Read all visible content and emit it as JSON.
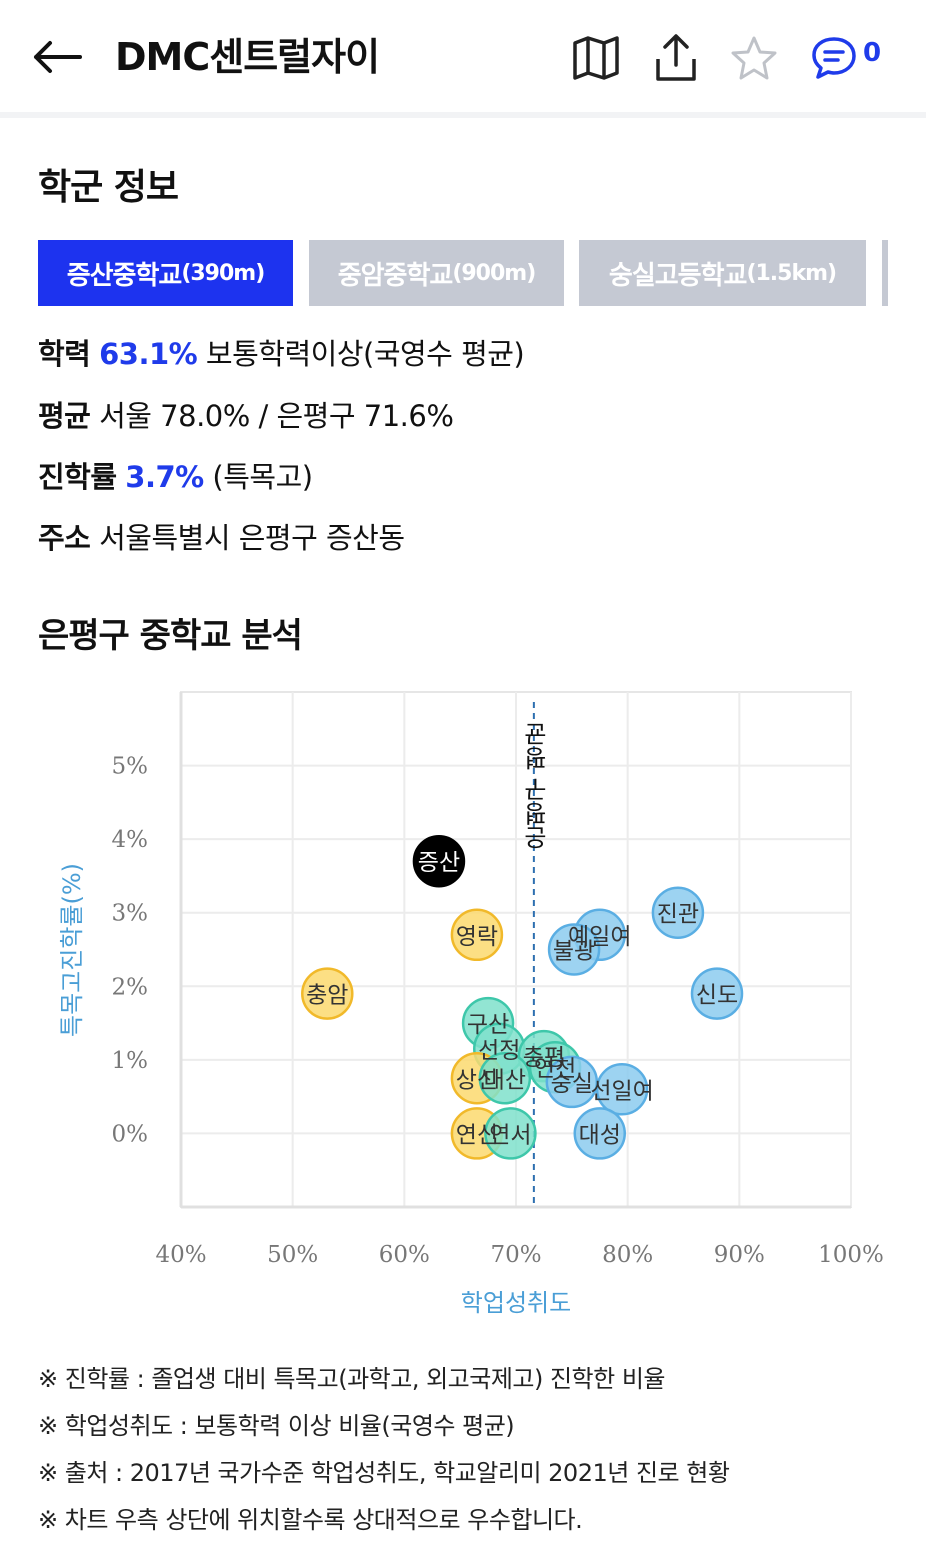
{
  "header": {
    "title": "DMC센트럴자이",
    "comment_count": "0"
  },
  "school_info": {
    "section_title": "학군 정보",
    "tabs": [
      {
        "name": "증산중학교",
        "distance": "(390m)",
        "active": true
      },
      {
        "name": "중암중학교",
        "distance": "(900m)",
        "active": false
      },
      {
        "name": "숭실고등학교",
        "distance": "(1.5km)",
        "active": false
      }
    ],
    "achievement_label": "학력",
    "achievement_value": "63.1%",
    "achievement_desc": "보통학력이상(국영수 평균)",
    "average_label": "평균",
    "average_value": "서울 78.0% / 은평구 71.6%",
    "advance_label": "진학률",
    "advance_value": "3.7%",
    "advance_desc": "(특목고)",
    "address_label": "주소",
    "address_value": "서울특별시 은평구 증산동"
  },
  "analysis": {
    "section_title": "은평구 중학교 분석"
  },
  "chart_data": {
    "type": "scatter",
    "xlabel": "학업성취도",
    "ylabel": "특목고진학률(%)",
    "xlim": [
      40,
      100
    ],
    "ylim": [
      -1,
      6
    ],
    "x_ticks": [
      "40%",
      "50%",
      "60%",
      "70%",
      "80%",
      "90%",
      "100%"
    ],
    "y_ticks": [
      "0%",
      "1%",
      "2%",
      "3%",
      "4%",
      "5%"
    ],
    "average_line": {
      "x": 71.6,
      "label": "은평구 평균"
    },
    "colors": {
      "blue": "#8ccbef",
      "teal": "#7fe0cb",
      "yellow": "#fcd96f",
      "black": "#000000"
    },
    "points": [
      {
        "label": "증산",
        "x": 63.1,
        "y": 3.7,
        "color": "black"
      },
      {
        "label": "영락",
        "x": 66.5,
        "y": 2.7,
        "color": "yellow"
      },
      {
        "label": "충암",
        "x": 53.1,
        "y": 1.9,
        "color": "yellow"
      },
      {
        "label": "진관",
        "x": 84.5,
        "y": 3.0,
        "color": "blue"
      },
      {
        "label": "예일여",
        "x": 77.5,
        "y": 2.7,
        "color": "blue"
      },
      {
        "label": "불광",
        "x": 75.2,
        "y": 2.5,
        "color": "blue"
      },
      {
        "label": "신도",
        "x": 88.0,
        "y": 1.9,
        "color": "blue"
      },
      {
        "label": "구산",
        "x": 67.5,
        "y": 1.5,
        "color": "teal"
      },
      {
        "label": "선정",
        "x": 68.5,
        "y": 1.15,
        "color": "teal"
      },
      {
        "label": "충평",
        "x": 72.5,
        "y": 1.05,
        "color": "teal"
      },
      {
        "label": "연천",
        "x": 73.5,
        "y": 0.9,
        "color": "teal"
      },
      {
        "label": "숭실",
        "x": 75.0,
        "y": 0.7,
        "color": "blue"
      },
      {
        "label": "선일여",
        "x": 79.5,
        "y": 0.6,
        "color": "blue"
      },
      {
        "label": "상신",
        "x": 66.5,
        "y": 0.75,
        "color": "yellow"
      },
      {
        "label": "대산",
        "x": 69.0,
        "y": 0.75,
        "color": "teal"
      },
      {
        "label": "연신",
        "x": 66.5,
        "y": 0.0,
        "color": "yellow"
      },
      {
        "label": "연서",
        "x": 69.5,
        "y": 0.0,
        "color": "teal"
      },
      {
        "label": "대성",
        "x": 77.5,
        "y": 0.0,
        "color": "blue"
      }
    ]
  },
  "notes": [
    "※ 진학률 : 졸업생 대비 특목고(과학고, 외고국제고) 진학한 비율",
    "※ 학업성취도 : 보통학력 이상 비율(국영수 평균)",
    "※ 출처 : 2017년 국가수준 학업성취도, 학교알리미 2021년 진로 현황",
    "※ 차트 우측 상단에 위치할수록 상대적으로 우수합니다."
  ]
}
